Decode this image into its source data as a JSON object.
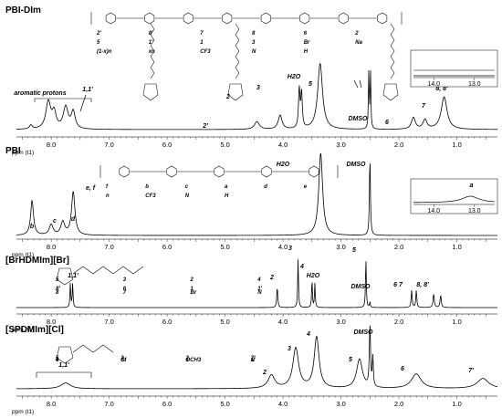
{
  "chart_data": [
    {
      "type": "line",
      "title": "PBI-DIm",
      "xlabel": "ppm (t1)",
      "xlim": [
        8.6,
        0.3
      ],
      "x_ticks": [
        "8.0",
        "7.0",
        "6.0",
        "5.0",
        "4.0",
        "3.0",
        "2.0",
        "1.0"
      ],
      "peaks": [
        {
          "ppm": 8.35,
          "h": 0.05,
          "w": 0.03
        },
        {
          "ppm": 8.05,
          "h": 0.35,
          "w": 0.05
        },
        {
          "ppm": 7.95,
          "h": 0.2,
          "w": 0.04
        },
        {
          "ppm": 7.75,
          "h": 0.28,
          "w": 0.05
        },
        {
          "ppm": 7.62,
          "h": 0.22,
          "w": 0.04
        },
        {
          "ppm": 4.45,
          "h": 0.1,
          "w": 0.05
        },
        {
          "ppm": 4.05,
          "h": 0.18,
          "w": 0.04
        },
        {
          "ppm": 3.72,
          "h": 0.5,
          "w": 0.015
        },
        {
          "ppm": 3.68,
          "h": 0.45,
          "w": 0.015
        },
        {
          "ppm": 3.36,
          "h": 0.85,
          "w": 0.05
        },
        {
          "ppm": 2.52,
          "h": 0.72,
          "w": 0.008
        },
        {
          "ppm": 2.49,
          "h": 0.72,
          "w": 0.008
        },
        {
          "ppm": 1.75,
          "h": 0.15,
          "w": 0.04
        },
        {
          "ppm": 1.55,
          "h": 0.12,
          "w": 0.04
        },
        {
          "ppm": 1.22,
          "h": 0.42,
          "w": 0.06
        }
      ],
      "annotations": [
        {
          "text": "aromatic protons",
          "ppm": 8.05
        },
        {
          "text": "1,1'",
          "ppm": 7.65
        },
        {
          "text": "2'",
          "ppm": 4.45
        },
        {
          "text": "2",
          "ppm": 4.05
        },
        {
          "text": "3",
          "ppm": 3.72
        },
        {
          "text": "H2O",
          "ppm": 3.36
        },
        {
          "text": "5",
          "ppm": 2.6
        },
        {
          "text": "DMSO",
          "ppm": 2.45
        },
        {
          "text": "6",
          "ppm": 1.8
        },
        {
          "text": "7",
          "ppm": 1.55
        },
        {
          "text": "8, 8'",
          "ppm": 1.22
        }
      ],
      "inset": {
        "xlim": [
          14.5,
          12.5
        ],
        "x_ticks": [
          "14.0",
          "13.0"
        ],
        "peaks": []
      },
      "molecule_labels": [
        "2'",
        "8'",
        "7",
        "8",
        "6",
        "2",
        "5",
        "1'",
        "1",
        "3",
        "Br",
        "Na",
        "(1-x)n",
        "xn",
        "CF3",
        "N",
        "H"
      ]
    },
    {
      "type": "line",
      "title": "PBI",
      "xlabel": "ppm (t1)",
      "xlim": [
        8.6,
        0.3
      ],
      "x_ticks": [
        "8.0",
        "7.0",
        "6.0",
        "5.0",
        "4.0",
        "3.0",
        "2.0",
        "1.0"
      ],
      "peaks": [
        {
          "ppm": 8.33,
          "h": 0.4,
          "w": 0.03
        },
        {
          "ppm": 8.0,
          "h": 0.12,
          "w": 0.04
        },
        {
          "ppm": 7.8,
          "h": 0.15,
          "w": 0.04
        },
        {
          "ppm": 7.62,
          "h": 0.5,
          "w": 0.035
        },
        {
          "ppm": 3.35,
          "h": 0.95,
          "w": 0.04
        },
        {
          "ppm": 2.5,
          "h": 0.9,
          "w": 0.01
        }
      ],
      "annotations": [
        {
          "text": "b",
          "ppm": 8.33
        },
        {
          "text": "c",
          "ppm": 8.0
        },
        {
          "text": "d",
          "ppm": 7.8
        },
        {
          "text": "e, f",
          "ppm": 7.62
        },
        {
          "text": "H2O",
          "ppm": 3.35
        },
        {
          "text": "DMSO",
          "ppm": 2.5
        }
      ],
      "inset": {
        "xlim": [
          14.5,
          12.5
        ],
        "x_ticks": [
          "14.0",
          "13.0"
        ],
        "peaks": [
          {
            "ppm": 13.1,
            "h": 0.5,
            "w": 0.25
          }
        ],
        "labels": [
          "a"
        ]
      },
      "molecule_labels": [
        "f",
        "b",
        "c",
        "a",
        "d",
        "e",
        "n",
        "CF3",
        "N",
        "H"
      ]
    },
    {
      "type": "line",
      "title": "[BrHDMIm][Br]",
      "xlabel": "ppm (t1)",
      "xlim": [
        8.6,
        0.3
      ],
      "x_ticks": [
        "8.0",
        "7.0",
        "6.0",
        "5.0",
        "4.0",
        "3.0",
        "2.0",
        "1.0"
      ],
      "peaks": [
        {
          "ppm": 7.67,
          "h": 0.35,
          "w": 0.008
        },
        {
          "ppm": 7.63,
          "h": 0.35,
          "w": 0.008
        },
        {
          "ppm": 4.1,
          "h": 0.3,
          "w": 0.01
        },
        {
          "ppm": 3.74,
          "h": 0.72,
          "w": 0.008
        },
        {
          "ppm": 3.5,
          "h": 0.4,
          "w": 0.008
        },
        {
          "ppm": 3.45,
          "h": 0.35,
          "w": 0.008
        },
        {
          "ppm": 2.57,
          "h": 0.72,
          "w": 0.008
        },
        {
          "ppm": 2.5,
          "h": 0.08,
          "w": 0.008
        },
        {
          "ppm": 1.78,
          "h": 0.25,
          "w": 0.01
        },
        {
          "ppm": 1.7,
          "h": 0.25,
          "w": 0.01
        },
        {
          "ppm": 1.4,
          "h": 0.2,
          "w": 0.012
        },
        {
          "ppm": 1.28,
          "h": 0.18,
          "w": 0.012
        }
      ],
      "annotations": [
        {
          "text": "1,1'",
          "ppm": 7.65
        },
        {
          "text": "2",
          "ppm": 4.1
        },
        {
          "text": "3",
          "ppm": 3.74
        },
        {
          "text": "4",
          "ppm": 3.5
        },
        {
          "text": "H2O",
          "ppm": 3.36
        },
        {
          "text": "5",
          "ppm": 2.57
        },
        {
          "text": "DMSO",
          "ppm": 2.45
        },
        {
          "text": "6 7",
          "ppm": 1.74
        },
        {
          "text": "8, 8'",
          "ppm": 1.34
        }
      ],
      "molecule_labels": [
        "5",
        "3",
        "2",
        "4",
        "8'",
        "6",
        "1",
        "1'",
        "8",
        "7",
        "Br",
        "N"
      ]
    },
    {
      "type": "line",
      "title": "[SPDMIm][Cl]",
      "xlabel": "ppm (t1)",
      "xlim": [
        8.6,
        0.3
      ],
      "x_ticks": [
        "8.0",
        "7.0",
        "6.0",
        "5.0",
        "4.0",
        "3.0",
        "2.0",
        "1.0"
      ],
      "peaks": [
        {
          "ppm": 7.75,
          "h": 0.08,
          "w": 0.1
        },
        {
          "ppm": 4.2,
          "h": 0.18,
          "w": 0.07
        },
        {
          "ppm": 3.78,
          "h": 0.55,
          "w": 0.06
        },
        {
          "ppm": 3.42,
          "h": 0.7,
          "w": 0.05
        },
        {
          "ppm": 2.68,
          "h": 0.4,
          "w": 0.06
        },
        {
          "ppm": 2.5,
          "h": 0.85,
          "w": 0.012
        },
        {
          "ppm": 2.45,
          "h": 0.4,
          "w": 0.01
        },
        {
          "ppm": 1.7,
          "h": 0.2,
          "w": 0.1
        },
        {
          "ppm": 0.55,
          "h": 0.14,
          "w": 0.12
        }
      ],
      "annotations": [
        {
          "text": "1,1'",
          "ppm": 7.78
        },
        {
          "text": "2",
          "ppm": 4.2
        },
        {
          "text": "3",
          "ppm": 3.78
        },
        {
          "text": "4",
          "ppm": 3.42
        },
        {
          "text": "5",
          "ppm": 2.72
        },
        {
          "text": "DMSO",
          "ppm": 2.45
        },
        {
          "text": "6",
          "ppm": 1.7
        },
        {
          "text": "7'",
          "ppm": 0.55
        }
      ],
      "molecule_labels": [
        "5",
        "3",
        "2",
        "7'",
        "4",
        "Si",
        "1",
        "1'",
        "6",
        "Cl",
        "OCH3",
        "N"
      ]
    }
  ]
}
